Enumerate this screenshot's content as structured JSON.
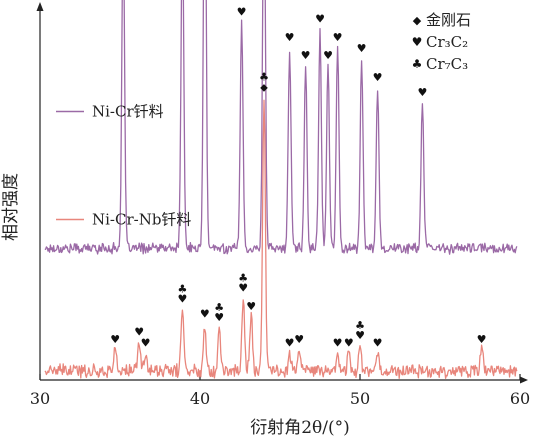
{
  "chart_data": {
    "type": "line",
    "title": "",
    "xlabel": "衍射角2θ/(°)",
    "ylabel": "相对强度",
    "xlim": [
      30,
      60
    ],
    "xticks": [
      30,
      40,
      50,
      60
    ],
    "xtick_labels": [
      "30",
      "40",
      "50",
      "60"
    ],
    "y_ticks_shown": false,
    "grid": false,
    "legend_position": "top-right",
    "legend": [
      {
        "symbol": "◆",
        "marker_name": "diamond-marker",
        "label": "金刚石"
      },
      {
        "symbol": "♥",
        "marker_name": "heart-marker",
        "label": "Cr₃C₂"
      },
      {
        "symbol": "♣",
        "marker_name": "club-marker",
        "label": "Cr₇C₃"
      }
    ],
    "series": [
      {
        "name": "Ni-Cr钎料",
        "color": "#9b6aa6",
        "baseline": 0.36,
        "noise_amp": 0.012,
        "peaks": [
          {
            "x": 35.2,
            "h": 0.88,
            "markers": [
              "heart"
            ]
          },
          {
            "x": 38.9,
            "h": 0.88,
            "markers": [
              "heart"
            ]
          },
          {
            "x": 40.3,
            "h": 1.19,
            "markers": [
              "heart"
            ]
          },
          {
            "x": 42.6,
            "h": 0.62,
            "markers": [
              "heart"
            ]
          },
          {
            "x": 44.0,
            "h": 1.05,
            "markers": [
              "diamond"
            ]
          },
          {
            "x": 45.6,
            "h": 0.55,
            "markers": [
              "heart"
            ]
          },
          {
            "x": 46.6,
            "h": 0.5,
            "markers": [
              "heart"
            ]
          },
          {
            "x": 47.5,
            "h": 0.6,
            "markers": [
              "heart"
            ]
          },
          {
            "x": 48.0,
            "h": 0.5,
            "markers": [
              "heart"
            ]
          },
          {
            "x": 48.6,
            "h": 0.55,
            "markers": [
              "heart"
            ]
          },
          {
            "x": 50.1,
            "h": 0.52,
            "markers": [
              "heart"
            ]
          },
          {
            "x": 51.1,
            "h": 0.44,
            "markers": [
              "heart"
            ]
          },
          {
            "x": 53.9,
            "h": 0.4,
            "markers": [
              "heart"
            ]
          }
        ]
      },
      {
        "name": "Ni-Cr-Nb钎料",
        "color": "#e8867c",
        "baseline": 0.025,
        "noise_amp": 0.015,
        "peaks": [
          {
            "x": 34.7,
            "h": 0.06,
            "markers": [
              "heart"
            ]
          },
          {
            "x": 36.2,
            "h": 0.08,
            "markers": [
              "heart"
            ]
          },
          {
            "x": 36.6,
            "h": 0.05,
            "markers": [
              "heart"
            ]
          },
          {
            "x": 38.9,
            "h": 0.17,
            "markers": [
              "heart",
              "club"
            ]
          },
          {
            "x": 40.3,
            "h": 0.13,
            "markers": [
              "heart"
            ]
          },
          {
            "x": 41.2,
            "h": 0.12,
            "markers": [
              "heart",
              "club"
            ]
          },
          {
            "x": 42.7,
            "h": 0.2,
            "markers": [
              "heart",
              "club"
            ]
          },
          {
            "x": 43.2,
            "h": 0.15,
            "markers": [
              "heart"
            ]
          },
          {
            "x": 44.0,
            "h": 0.75,
            "markers": [
              "diamond",
              "club"
            ]
          },
          {
            "x": 45.6,
            "h": 0.05,
            "markers": [
              "heart"
            ]
          },
          {
            "x": 46.2,
            "h": 0.06,
            "markers": [
              "heart"
            ]
          },
          {
            "x": 48.6,
            "h": 0.05,
            "markers": [
              "heart"
            ]
          },
          {
            "x": 49.3,
            "h": 0.05,
            "markers": [
              "heart"
            ]
          },
          {
            "x": 50.0,
            "h": 0.07,
            "markers": [
              "heart",
              "club"
            ]
          },
          {
            "x": 51.1,
            "h": 0.05,
            "markers": [
              "heart"
            ]
          },
          {
            "x": 57.6,
            "h": 0.06,
            "markers": [
              "heart"
            ]
          }
        ]
      }
    ]
  }
}
